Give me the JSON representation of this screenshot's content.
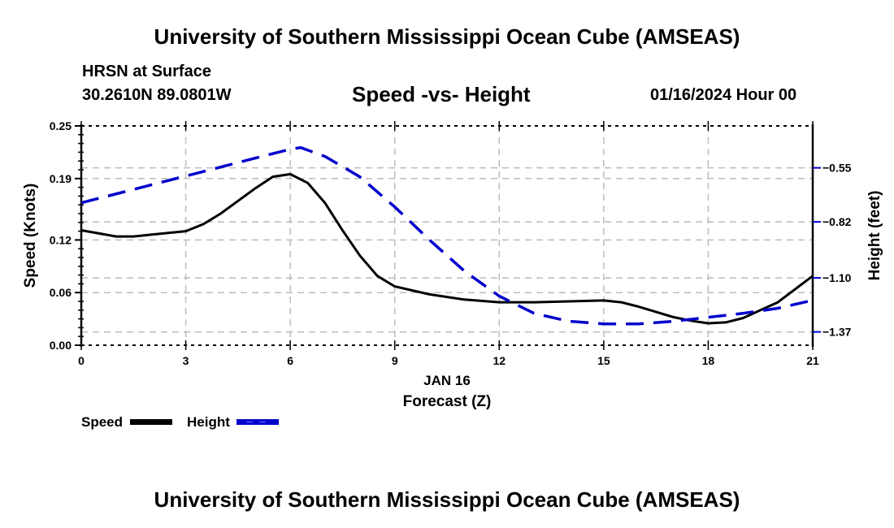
{
  "header": {
    "title": "University of Southern Mississippi Ocean Cube (AMSEAS)",
    "station": "HRSN at Surface",
    "coords": "30.2610N  89.0801W",
    "subtitle": "Speed -vs- Height",
    "datetime": "01/16/2024 Hour 00"
  },
  "footer": {
    "title": "University of Southern Mississippi Ocean Cube (AMSEAS)"
  },
  "chart_data": {
    "type": "line",
    "title": "Speed -vs- Height",
    "xlabel": "Forecast (Z)",
    "xlabel_date": "JAN 16",
    "ylabel": "Speed (Knots)",
    "y2label": "Height (feet)",
    "xlim": [
      0,
      21
    ],
    "ylim": [
      0,
      0.25
    ],
    "y2lim": [
      -1.4366,
      -0.3404
    ],
    "x_ticks": [
      0,
      3,
      6,
      9,
      12,
      15,
      18,
      21
    ],
    "x_tick_labels": [
      "0",
      "3",
      "6",
      "9",
      "12",
      "15",
      "18",
      "21"
    ],
    "y_ticks": [
      0.0,
      0.06,
      0.12,
      0.19,
      0.25
    ],
    "y_tick_labels": [
      "0.00",
      "0.06",
      "0.12",
      "0.19",
      "0.25"
    ],
    "y2_ticks": [
      -0.55,
      -0.82,
      -1.1,
      -1.37
    ],
    "y2_tick_labels": [
      "−0.55",
      "−0.82",
      "−1.10",
      "−1.37"
    ],
    "grid": true,
    "legend_position": "bottom-left",
    "colors": {
      "speed": "#000000",
      "height": "#0000cc",
      "grid": "#bbbbbb",
      "y2axis": "#0000cc"
    },
    "series": [
      {
        "name": "Speed",
        "axis": "left",
        "style": "solid",
        "x": [
          0,
          1,
          1.5,
          2,
          3,
          3.5,
          4,
          5,
          5.5,
          6,
          6.5,
          7,
          7.5,
          8,
          8.5,
          9,
          10,
          11,
          12,
          13,
          14,
          15,
          15.5,
          16,
          17,
          17.5,
          18,
          18.5,
          19,
          20,
          21
        ],
        "values": [
          0.131,
          0.124,
          0.124,
          0.126,
          0.13,
          0.138,
          0.15,
          0.179,
          0.192,
          0.195,
          0.185,
          0.162,
          0.131,
          0.102,
          0.079,
          0.067,
          0.058,
          0.052,
          0.049,
          0.049,
          0.05,
          0.051,
          0.049,
          0.044,
          0.032,
          0.028,
          0.025,
          0.026,
          0.031,
          0.049,
          0.079
        ]
      },
      {
        "name": "Height",
        "axis": "right",
        "style": "dashed",
        "x": [
          0,
          3,
          5,
          6,
          6.3,
          7,
          8,
          9,
          10,
          11,
          12,
          13,
          14,
          15,
          16,
          17,
          18,
          19,
          20,
          21
        ],
        "values": [
          -0.725,
          -0.591,
          -0.501,
          -0.457,
          -0.449,
          -0.493,
          -0.595,
          -0.745,
          -0.911,
          -1.066,
          -1.191,
          -1.277,
          -1.317,
          -1.33,
          -1.33,
          -1.317,
          -1.297,
          -1.277,
          -1.252,
          -1.212
        ]
      }
    ]
  },
  "legend": {
    "speed_label": "Speed",
    "height_label": "Height"
  }
}
